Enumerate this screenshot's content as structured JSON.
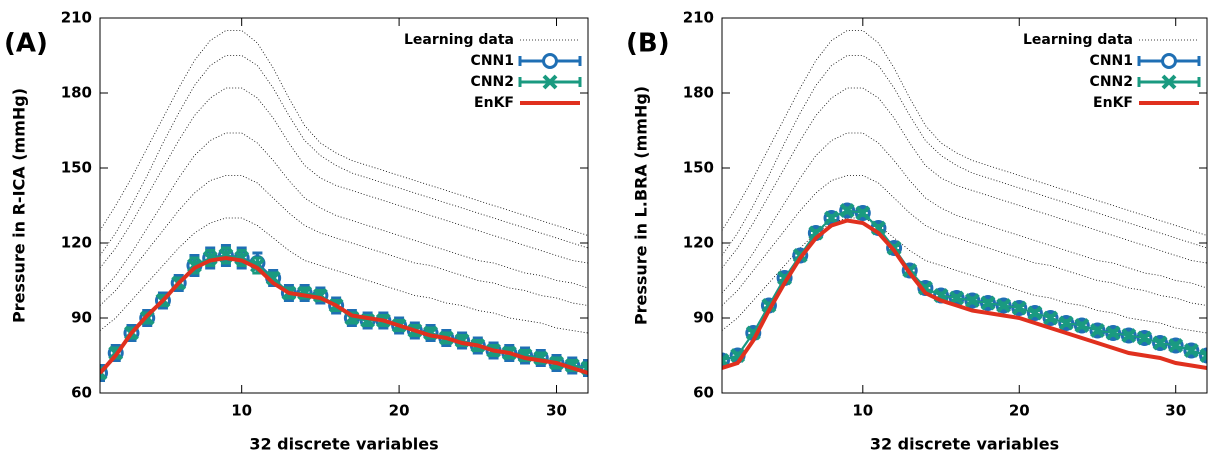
{
  "chart_data": [
    {
      "type": "line",
      "panel_label": "(A)",
      "xlabel": "32 discrete variables",
      "ylabel": "Pressure in R-ICA (mmHg)",
      "x": [
        1,
        2,
        3,
        4,
        5,
        6,
        7,
        8,
        9,
        10,
        11,
        12,
        13,
        14,
        15,
        16,
        17,
        18,
        19,
        20,
        21,
        22,
        23,
        24,
        25,
        26,
        27,
        28,
        29,
        30,
        31,
        32
      ],
      "xlim": [
        1,
        32
      ],
      "xticks": [
        10,
        20,
        30
      ],
      "ylim": [
        60,
        210
      ],
      "yticks": [
        60,
        90,
        120,
        150,
        180,
        210
      ],
      "series": [
        {
          "name": "Learning data",
          "color": "#000000",
          "style": "dotted",
          "lines": [
            [
              125,
              135,
              146,
              158,
              170,
              182,
              193,
              201,
              205,
              205,
              200,
              190,
              178,
              167,
              160,
              156,
              153,
              151,
              149,
              147,
              145,
              143,
              141,
              139,
              137,
              135,
              133,
              131,
              129,
              127,
              125,
              123
            ],
            [
              115,
              124,
              135,
              147,
              160,
              172,
              183,
              191,
              195,
              195,
              191,
              182,
              171,
              161,
              155,
              151,
              148,
              146,
              144,
              142,
              140,
              138,
              136,
              134,
              132,
              130,
              128,
              126,
              124,
              122,
              120,
              118
            ],
            [
              110,
              118,
              128,
              139,
              150,
              161,
              171,
              178,
              182,
              182,
              178,
              170,
              160,
              151,
              146,
              143,
              141,
              139,
              137,
              135,
              133,
              131,
              129,
              127,
              125,
              123,
              121,
              119,
              117,
              115,
              113,
              112
            ],
            [
              100,
              107,
              116,
              126,
              136,
              146,
              155,
              161,
              164,
              164,
              160,
              153,
              145,
              138,
              134,
              131,
              129,
              127,
              125,
              123,
              121,
              119,
              117,
              115,
              113,
              112,
              110,
              108,
              107,
              105,
              104,
              102
            ],
            [
              95,
              101,
              109,
              117,
              125,
              133,
              140,
              145,
              147,
              147,
              144,
              138,
              132,
              127,
              124,
              122,
              120,
              118,
              116,
              114,
              112,
              111,
              109,
              107,
              105,
              104,
              102,
              101,
              99,
              98,
              96,
              95
            ],
            [
              85,
              90,
              97,
              104,
              111,
              118,
              124,
              128,
              130,
              130,
              127,
              122,
              117,
              113,
              111,
              109,
              107,
              105,
              103,
              101,
              99,
              98,
              96,
              95,
              93,
              92,
              90,
              89,
              88,
              86,
              85,
              84
            ]
          ]
        },
        {
          "name": "CNN1",
          "color": "#1f6fb4",
          "marker": "circle",
          "values": [
            68,
            76,
            84,
            90,
            97,
            104,
            111,
            114,
            115,
            114,
            112,
            106,
            100,
            100,
            99,
            95,
            90,
            89,
            89,
            87,
            85,
            84,
            82,
            81,
            79,
            77,
            76,
            75,
            74,
            72,
            71,
            70
          ],
          "errors": [
            3,
            3,
            3,
            3,
            3,
            3,
            4,
            4,
            4,
            4,
            4,
            3,
            3,
            3,
            3,
            3,
            3,
            3,
            3,
            3,
            3,
            3,
            3,
            3,
            3,
            3,
            3,
            3,
            3,
            3,
            3,
            3
          ]
        },
        {
          "name": "CNN2",
          "color": "#1a9a80",
          "marker": "cross",
          "values": [
            68,
            76,
            84,
            90,
            97,
            104,
            111,
            114,
            115,
            114,
            111,
            106,
            100,
            100,
            99,
            95,
            90,
            89,
            89,
            87,
            85,
            84,
            82,
            81,
            79,
            77,
            76,
            75,
            74,
            72,
            71,
            70
          ],
          "errors": [
            2,
            2,
            2,
            2,
            2,
            2,
            3,
            3,
            3,
            3,
            3,
            2,
            2,
            2,
            2,
            2,
            2,
            2,
            2,
            2,
            2,
            2,
            2,
            2,
            2,
            2,
            2,
            2,
            2,
            2,
            2,
            2
          ]
        },
        {
          "name": "EnKF",
          "color": "#e0301e",
          "values": [
            68,
            75,
            84,
            91,
            97,
            104,
            110,
            113,
            114,
            113,
            110,
            104,
            100,
            99,
            98,
            95,
            91,
            90,
            89,
            87,
            85,
            83,
            82,
            80,
            79,
            77,
            76,
            74,
            73,
            72,
            70,
            68
          ]
        }
      ]
    },
    {
      "type": "line",
      "panel_label": "(B)",
      "xlabel": "32 discrete variables",
      "ylabel": "Pressure in L.BRA (mmHg)",
      "x": [
        1,
        2,
        3,
        4,
        5,
        6,
        7,
        8,
        9,
        10,
        11,
        12,
        13,
        14,
        15,
        16,
        17,
        18,
        19,
        20,
        21,
        22,
        23,
        24,
        25,
        26,
        27,
        28,
        29,
        30,
        31,
        32
      ],
      "xlim": [
        1,
        32
      ],
      "xticks": [
        10,
        20,
        30
      ],
      "ylim": [
        60,
        210
      ],
      "yticks": [
        60,
        90,
        120,
        150,
        180,
        210
      ],
      "series": [
        {
          "name": "Learning data",
          "color": "#000000",
          "style": "dotted",
          "lines": [
            [
              125,
              135,
              146,
              158,
              170,
              182,
              193,
              201,
              205,
              205,
              200,
              190,
              178,
              167,
              160,
              156,
              153,
              151,
              149,
              147,
              145,
              143,
              141,
              139,
              137,
              135,
              133,
              131,
              129,
              127,
              125,
              123
            ],
            [
              115,
              124,
              135,
              147,
              160,
              172,
              183,
              191,
              195,
              195,
              191,
              182,
              171,
              161,
              155,
              151,
              148,
              146,
              144,
              142,
              140,
              138,
              136,
              134,
              132,
              130,
              128,
              126,
              124,
              122,
              120,
              118
            ],
            [
              110,
              118,
              128,
              139,
              150,
              161,
              171,
              178,
              182,
              182,
              178,
              170,
              160,
              151,
              146,
              143,
              141,
              139,
              137,
              135,
              133,
              131,
              129,
              127,
              125,
              123,
              121,
              119,
              117,
              115,
              113,
              112
            ],
            [
              100,
              107,
              116,
              126,
              136,
              146,
              155,
              161,
              164,
              164,
              160,
              153,
              145,
              138,
              134,
              131,
              129,
              127,
              125,
              123,
              121,
              119,
              117,
              115,
              113,
              112,
              110,
              108,
              107,
              105,
              104,
              102
            ],
            [
              95,
              101,
              109,
              117,
              125,
              133,
              140,
              145,
              147,
              147,
              144,
              138,
              132,
              127,
              124,
              122,
              120,
              118,
              116,
              114,
              112,
              111,
              109,
              107,
              105,
              104,
              102,
              101,
              99,
              98,
              96,
              95
            ],
            [
              85,
              90,
              97,
              104,
              111,
              118,
              124,
              128,
              130,
              130,
              127,
              122,
              117,
              113,
              111,
              109,
              107,
              105,
              103,
              101,
              99,
              98,
              96,
              95,
              93,
              92,
              90,
              89,
              88,
              86,
              85,
              84
            ]
          ]
        },
        {
          "name": "CNN1",
          "color": "#1f6fb4",
          "marker": "circle",
          "values": [
            73,
            75,
            84,
            95,
            106,
            115,
            124,
            130,
            133,
            132,
            126,
            118,
            109,
            102,
            99,
            98,
            97,
            96,
            95,
            94,
            92,
            90,
            88,
            87,
            85,
            84,
            83,
            82,
            80,
            79,
            77,
            75
          ],
          "errors": [
            2,
            2,
            2,
            2,
            2,
            2,
            2,
            2,
            2,
            2,
            2,
            2,
            2,
            2,
            2,
            2,
            2,
            2,
            2,
            2,
            2,
            2,
            2,
            2,
            2,
            2,
            2,
            2,
            2,
            2,
            2,
            2
          ]
        },
        {
          "name": "CNN2",
          "color": "#1a9a80",
          "marker": "cross",
          "values": [
            73,
            75,
            84,
            95,
            106,
            115,
            124,
            130,
            133,
            132,
            126,
            118,
            109,
            102,
            99,
            98,
            97,
            96,
            95,
            94,
            92,
            90,
            88,
            87,
            85,
            84,
            83,
            82,
            80,
            79,
            77,
            75
          ],
          "errors": [
            1,
            1,
            1,
            1,
            1,
            1,
            1,
            1,
            1,
            1,
            1,
            1,
            1,
            1,
            1,
            1,
            1,
            1,
            1,
            1,
            1,
            1,
            1,
            1,
            1,
            1,
            1,
            1,
            1,
            1,
            1,
            1
          ]
        },
        {
          "name": "EnKF",
          "color": "#e0301e",
          "values": [
            70,
            72,
            81,
            93,
            104,
            114,
            122,
            127,
            129,
            128,
            124,
            117,
            108,
            100,
            97,
            95,
            93,
            92,
            91,
            90,
            88,
            86,
            84,
            82,
            80,
            78,
            76,
            75,
            74,
            72,
            71,
            70
          ]
        }
      ]
    }
  ]
}
